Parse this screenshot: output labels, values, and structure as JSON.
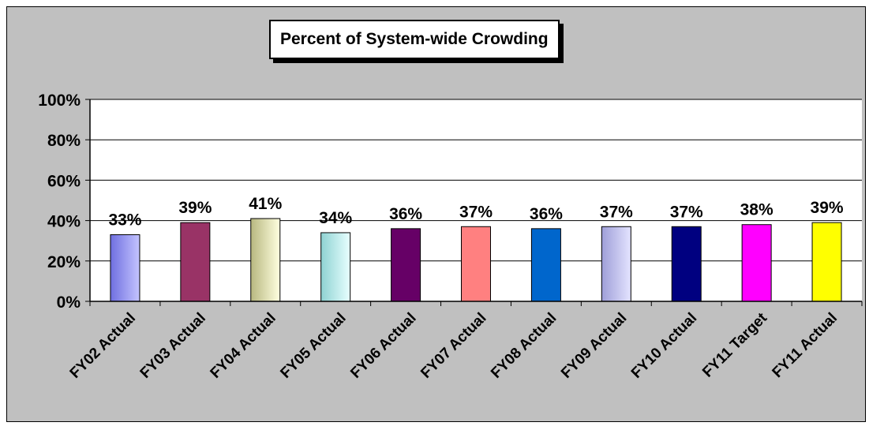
{
  "chart_data": {
    "type": "bar",
    "title": "Percent of System-wide Crowding",
    "categories": [
      "FY02 Actual",
      "FY03 Actual",
      "FY04 Actual",
      "FY05 Actual",
      "FY06 Actual",
      "FY07 Actual",
      "FY08 Actual",
      "FY09 Actual",
      "FY10 Actual",
      "FY11 Target",
      "FY11 Actual"
    ],
    "values": [
      33,
      39,
      41,
      34,
      36,
      37,
      36,
      37,
      37,
      38,
      39
    ],
    "data_labels": [
      "33%",
      "39%",
      "41%",
      "34%",
      "36%",
      "37%",
      "36%",
      "37%",
      "37%",
      "38%",
      "39%"
    ],
    "bar_colors": [
      [
        "#6f6fe0",
        "#c4c4ff"
      ],
      [
        "#993366",
        "#993366"
      ],
      [
        "#b8b880",
        "#ffffe0"
      ],
      [
        "#8ed2d2",
        "#e8ffff"
      ],
      [
        "#660066",
        "#660066"
      ],
      [
        "#ff8080",
        "#ff8080"
      ],
      [
        "#0066cc",
        "#0066cc"
      ],
      [
        "#9e9ed8",
        "#e4e4ff"
      ],
      [
        "#000080",
        "#000080"
      ],
      [
        "#ff00ff",
        "#ff00ff"
      ],
      [
        "#ffff00",
        "#ffff00"
      ]
    ],
    "y_ticks": [
      "0%",
      "20%",
      "40%",
      "60%",
      "80%",
      "100%"
    ],
    "ylim": [
      0,
      100
    ],
    "grid": true,
    "legend": "none",
    "xlabel": "",
    "ylabel": "",
    "colors": {
      "background": "#c0c0c0",
      "plot_area": "#ffffff",
      "bar_border": "#000000"
    }
  }
}
